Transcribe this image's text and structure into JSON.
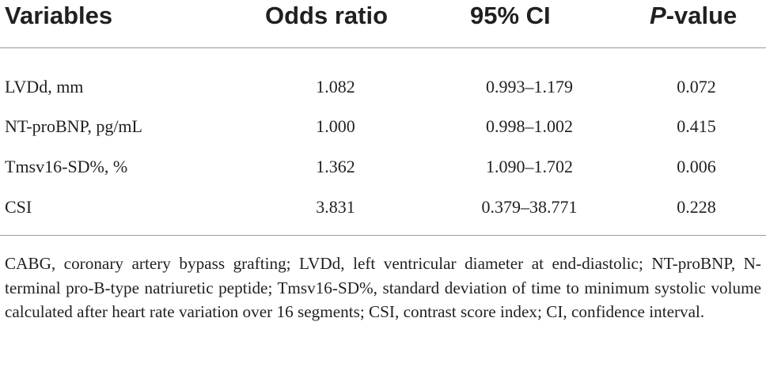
{
  "table": {
    "headers": {
      "variables": "Variables",
      "odds_ratio": "Odds ratio",
      "ci": "95% CI",
      "p_italic": "P",
      "p_rest": "-value"
    },
    "rows": [
      {
        "variable": "LVDd, mm",
        "odds_ratio": "1.082",
        "ci": "0.993–1.179",
        "p_value": "0.072"
      },
      {
        "variable": "NT-proBNP, pg/mL",
        "odds_ratio": "1.000",
        "ci": "0.998–1.002",
        "p_value": "0.415"
      },
      {
        "variable": "Tmsv16-SD%, %",
        "odds_ratio": "1.362",
        "ci": "1.090–1.702",
        "p_value": "0.006"
      },
      {
        "variable": "CSI",
        "odds_ratio": "3.831",
        "ci": "0.379–38.771",
        "p_value": "0.228"
      }
    ]
  },
  "footnote": "CABG, coronary artery bypass grafting; LVDd, left ventricular diameter at end-diastolic; NT-proBNP, N-terminal pro-B-type natriuretic peptide; Tmsv16-SD%, standard deviation of time to minimum systolic volume calculated after heart rate variation over 16 segments; CSI, contrast score index; CI, confidence interval."
}
